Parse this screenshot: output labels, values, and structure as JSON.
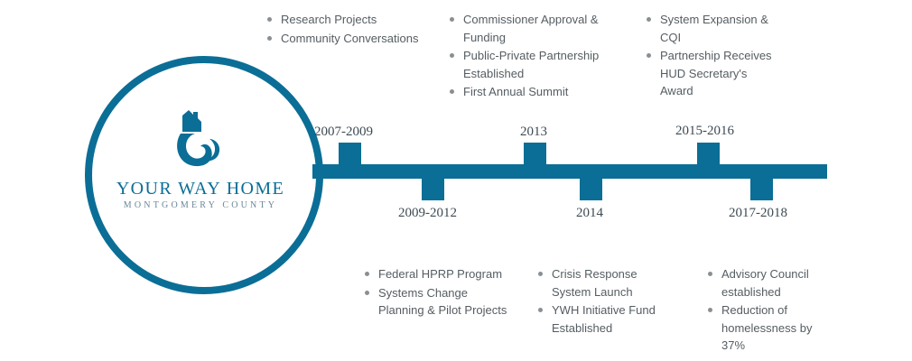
{
  "brand": {
    "name": "YOUR WAY HOME",
    "subtitle": "MONTGOMERY COUNTY",
    "accent_color": "#0b6e96",
    "logo_icon": "house-swirl-icon"
  },
  "milestones": [
    {
      "year": "2007-2009",
      "items": [
        "Research Projects",
        "Community Conversations"
      ]
    },
    {
      "year": "2009-2012",
      "items": [
        "Federal HPRP Program",
        "Systems Change Planning & Pilot Projects"
      ]
    },
    {
      "year": "2013",
      "items": [
        "Commissioner Approval & Funding",
        "Public-Private Partnership Established",
        "First Annual Summit"
      ]
    },
    {
      "year": "2014",
      "items": [
        "Crisis Response System Launch",
        "YWH Initiative Fund Established"
      ]
    },
    {
      "year": "2015-2016",
      "items": [
        "System Expansion & CQI",
        "Partnership Receives HUD Secretary's Award"
      ]
    },
    {
      "year": "2017-2018",
      "items": [
        "Advisory Council established",
        "Reduction of homelessness by 37%"
      ]
    }
  ]
}
